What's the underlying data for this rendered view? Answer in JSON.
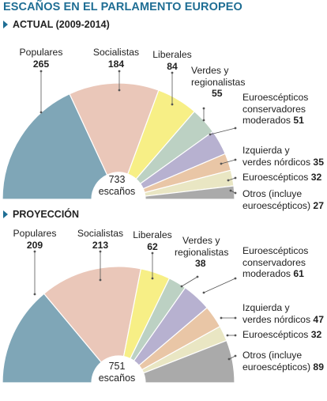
{
  "title": "ESCAÑOS EN EL PARLAMENTO EUROPEO",
  "colors": {
    "accent": "#1f6e94",
    "populares": "#7fa6b7",
    "socialistas": "#eac7b9",
    "liberales": "#f7ef86",
    "verdes": "#bcd1c3",
    "euroesc_conservadores": "#b7b1d0",
    "izquierda": "#e9c6a6",
    "euroescepticos": "#e9e6c3",
    "otros": "#aaaaaa"
  },
  "chart_data": [
    {
      "type": "pie",
      "variant": "semicircle",
      "title": "ACTUAL (2009-2014)",
      "total_value": "733",
      "total_unit": "escaños",
      "slices": [
        {
          "label": "Populares",
          "value": 265,
          "color": "#7fa6b7"
        },
        {
          "label": "Socialistas",
          "value": 184,
          "color": "#eac7b9"
        },
        {
          "label": "Liberales",
          "value": 84,
          "color": "#f7ef86"
        },
        {
          "label": "Verdes y regionalistas",
          "value": 55,
          "color": "#bcd1c3"
        },
        {
          "label": "Euroescépticos conservadores moderados",
          "value": 51,
          "color": "#b7b1d0"
        },
        {
          "label": "Izquierda y verdes nórdicos",
          "value": 35,
          "color": "#e9c6a6"
        },
        {
          "label": "Euroescépticos",
          "value": 32,
          "color": "#e9e6c3"
        },
        {
          "label": "Otros (incluye euroescépticos)",
          "value": 27,
          "color": "#aaaaaa"
        }
      ]
    },
    {
      "type": "pie",
      "variant": "semicircle",
      "title": "PROYECCIÓN",
      "total_value": "751",
      "total_unit": "escaños",
      "slices": [
        {
          "label": "Populares",
          "value": 209,
          "color": "#7fa6b7"
        },
        {
          "label": "Socialistas",
          "value": 213,
          "color": "#eac7b9"
        },
        {
          "label": "Liberales",
          "value": 62,
          "color": "#f7ef86"
        },
        {
          "label": "Verdes y regionalistas",
          "value": 38,
          "color": "#bcd1c3"
        },
        {
          "label": "Euroescépticos conservadores moderados",
          "value": 61,
          "color": "#b7b1d0"
        },
        {
          "label": "Izquierda y verdes nórdicos",
          "value": 47,
          "color": "#e9c6a6"
        },
        {
          "label": "Euroescépticos",
          "value": 32,
          "color": "#e9e6c3"
        },
        {
          "label": "Otros (incluye euroescépticos)",
          "value": 89,
          "color": "#aaaaaa"
        }
      ]
    }
  ]
}
